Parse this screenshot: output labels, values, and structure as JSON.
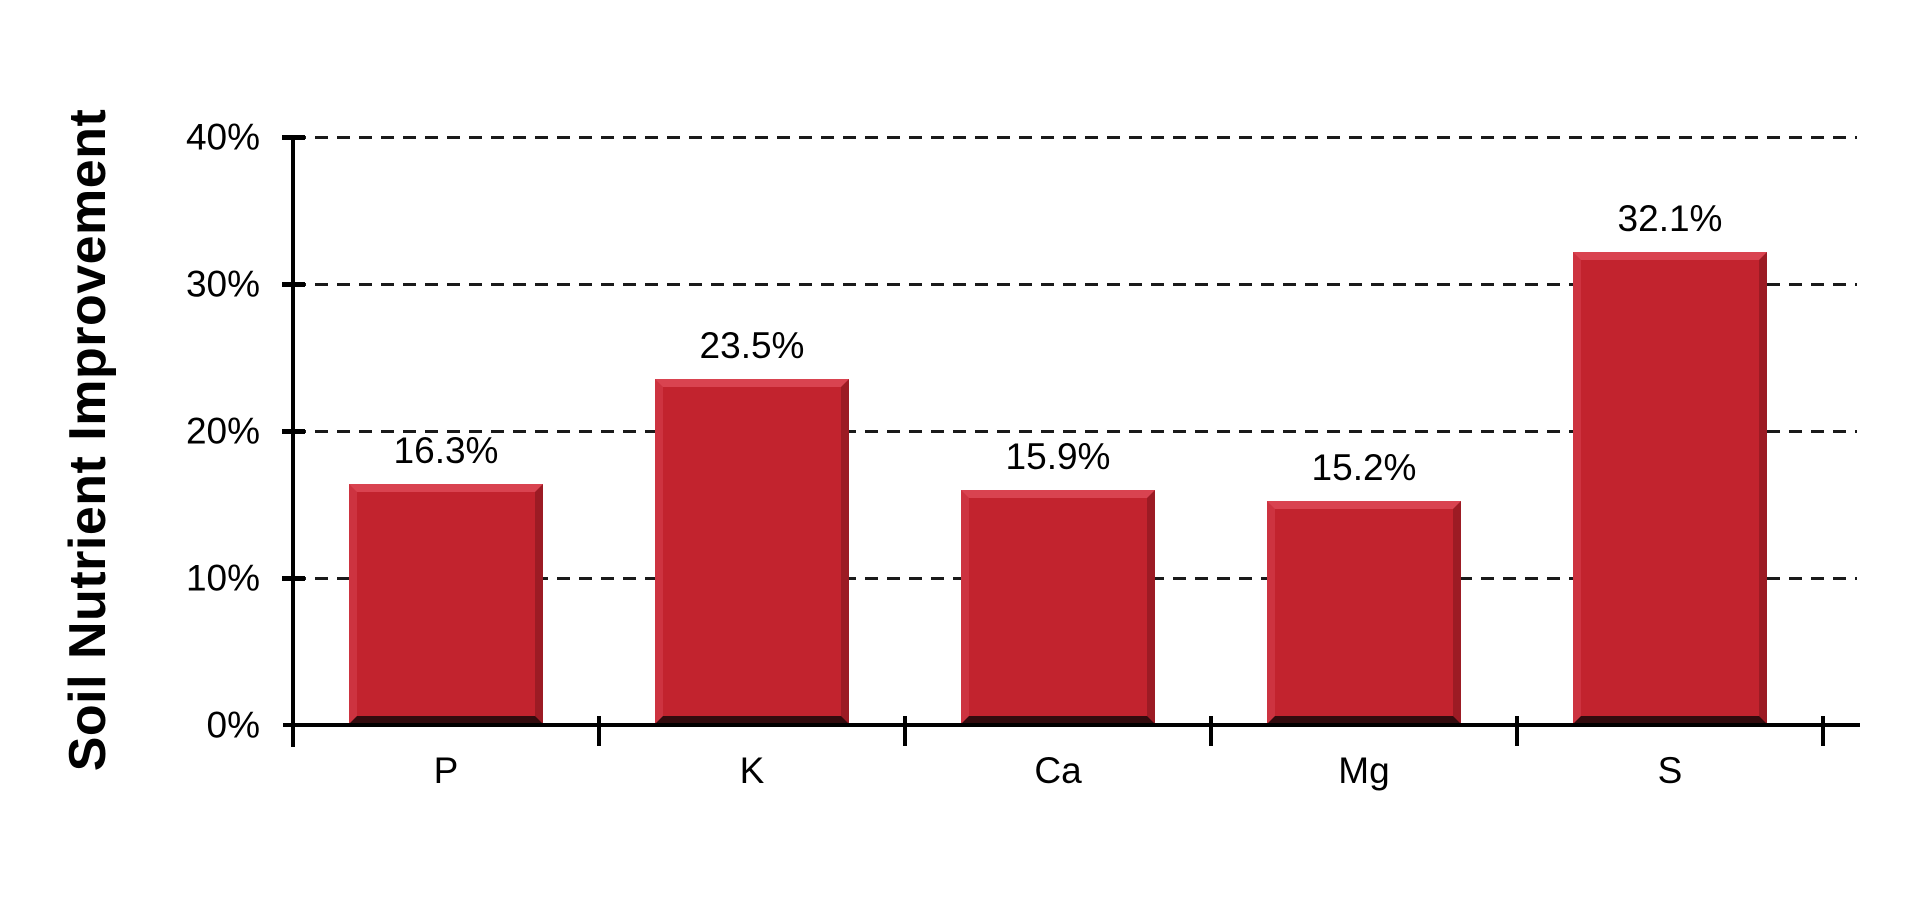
{
  "chart_data": {
    "type": "bar",
    "categories": [
      "P",
      "K",
      "Ca",
      "Mg",
      "S"
    ],
    "values": [
      16.3,
      23.5,
      15.9,
      15.2,
      32.1
    ],
    "value_labels": [
      "16.3%",
      "23.5%",
      "15.9%",
      "15.2%",
      "32.1%"
    ],
    "title": "",
    "xlabel": "",
    "ylabel": "Soil Nutrient Improvement",
    "ylim": [
      0,
      40
    ],
    "yticks": [
      0,
      10,
      20,
      30,
      40
    ],
    "ytick_labels": [
      "0%",
      "10%",
      "20%",
      "30%",
      "40%"
    ],
    "grid": "horizontal-dashed",
    "legend": "none",
    "colors": {
      "bar_fill": "#c2232e",
      "bar_bevel_top": "#d94350",
      "bar_bevel_left": "#cd3340",
      "bar_bevel_right": "#9c1b24",
      "bar_bevel_bottom": "#330b0e",
      "axis": "#000000",
      "gridline": "#1a1a1a",
      "text": "#000000",
      "background": "#ffffff"
    }
  }
}
